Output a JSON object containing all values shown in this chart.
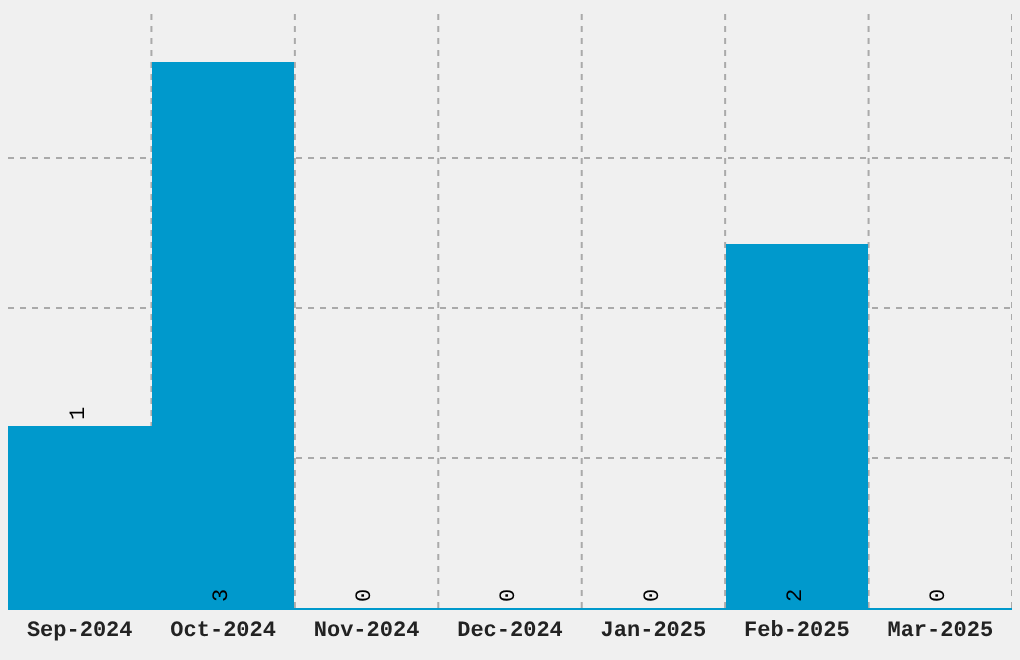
{
  "chart_data": {
    "type": "bar",
    "categories": [
      "Sep-2024",
      "Oct-2024",
      "Nov-2024",
      "Dec-2024",
      "Jan-2025",
      "Feb-2025",
      "Mar-2025"
    ],
    "values": [
      1,
      3,
      0,
      0,
      0,
      2,
      0
    ],
    "color": "#0099cc",
    "ylim": [
      0,
      3.3
    ],
    "yticks": [
      {
        "value": 0.825,
        "label": null
      },
      {
        "value": 1.65,
        "label": null
      },
      {
        "value": 2.475,
        "label": null
      }
    ],
    "tick_labels": "x",
    "grid": true,
    "data_labels": true
  }
}
